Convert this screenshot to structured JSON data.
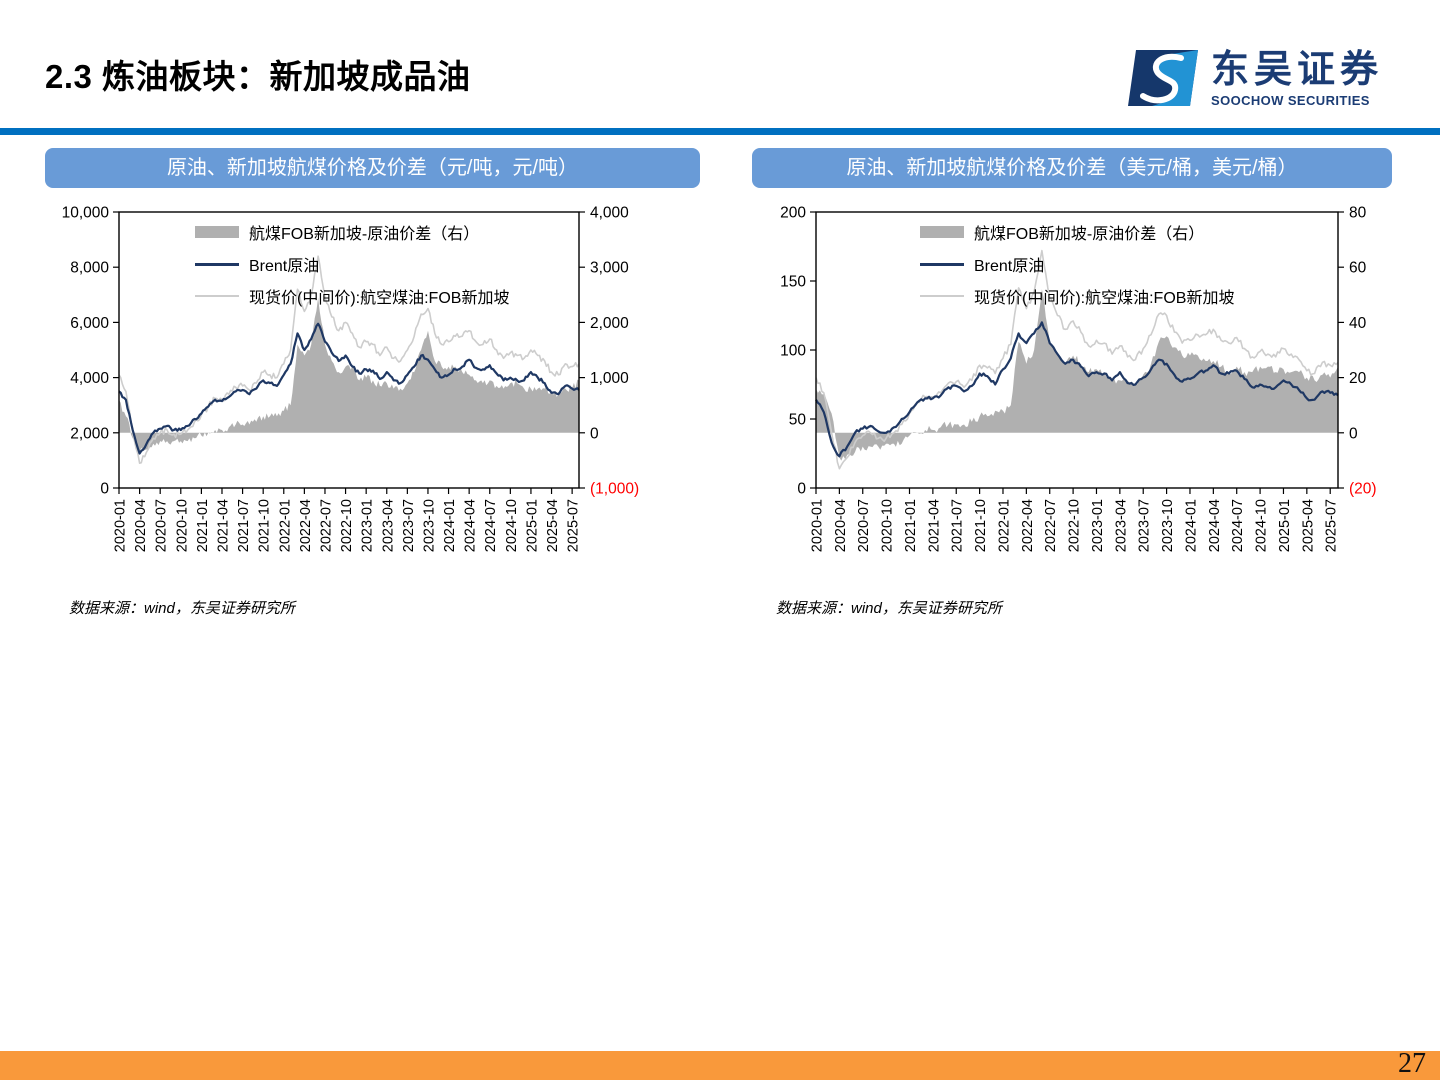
{
  "slide": {
    "title": "2.3 炼油板块：新加坡成品油",
    "page_number": "27"
  },
  "brand": {
    "name_cn": "东吴证券",
    "name_en": "SOOCHOW SECURITIES",
    "logo_icon": "soochow-s-mark",
    "colors": {
      "divider_blue": "#0070C0",
      "panel_header_blue": "#699BD7",
      "brent_navy": "#1F3864",
      "spot_gray": "#CDCDCD",
      "spread_gray": "#B0B0B0",
      "negative_tick_red": "#FF0000",
      "footer_orange": "#F9993B",
      "logo_navy": "#15376B",
      "logo_light_blue": "#2293D4"
    }
  },
  "panels": [
    {
      "header": "原油、新加坡航煤价格及价差（元/吨，元/吨）",
      "source": "数据来源：wind，东吴证券研究所"
    },
    {
      "header": "原油、新加坡航煤价格及价差（美元/桶，美元/桶）",
      "source": "数据来源：wind，东吴证券研究所"
    }
  ],
  "chart_data": [
    {
      "type": "area+line combo, dual axis",
      "title": "原油、新加坡航煤价格及价差（元/吨，元/吨）",
      "x_frequency": "monthly",
      "x_start": "2020-01",
      "x_end": "2025-08",
      "x_tick_labels": [
        "2020-01",
        "2020-04",
        "2020-07",
        "2020-10",
        "2021-01",
        "2021-04",
        "2021-07",
        "2021-10",
        "2022-01",
        "2022-04",
        "2022-07",
        "2022-10",
        "2023-01",
        "2023-04",
        "2023-07",
        "2023-10",
        "2024-01",
        "2024-04",
        "2024-07",
        "2024-10",
        "2025-01",
        "2025-04",
        "2025-07"
      ],
      "y_left": {
        "min": 0,
        "max": 10000,
        "ticks": [
          "0",
          "2,000",
          "4,000",
          "6,000",
          "8,000",
          "10,000"
        ]
      },
      "y_right": {
        "min": -1000,
        "max": 4000,
        "ticks": [
          "(1,000)",
          "0",
          "1,000",
          "2,000",
          "3,000",
          "4,000"
        ],
        "negative_color": "#FF0000"
      },
      "legend": [
        "航煤FOB新加坡-原油价差（右）",
        "Brent原油",
        "现货价(中间价):航空煤油:FOB新加坡"
      ],
      "legend_position": "inside-top-left",
      "grid": false,
      "series": [
        {
          "name": "航煤FOB新加坡-原油价差（右）",
          "type": "area",
          "axis": "right",
          "color": "#B0B0B0",
          "z": 0,
          "noise": 70,
          "values": [
            600,
            300,
            -100,
            -350,
            -300,
            -200,
            -150,
            -150,
            -150,
            -150,
            -150,
            -100,
            -50,
            0,
            50,
            50,
            100,
            150,
            150,
            150,
            200,
            300,
            300,
            300,
            400,
            500,
            1600,
            1400,
            1600,
            2450,
            1600,
            1300,
            1100,
            1200,
            1200,
            950,
            1000,
            950,
            850,
            900,
            800,
            800,
            900,
            1100,
            1500,
            1850,
            1300,
            1200,
            1200,
            1200,
            1100,
            1050,
            950,
            900,
            950,
            850,
            800,
            900,
            900,
            800,
            800,
            800,
            800,
            750,
            700,
            800,
            800,
            950
          ]
        },
        {
          "name": "Brent原油",
          "type": "line",
          "axis": "left",
          "color": "#1F3864",
          "width": 2.2,
          "z": 2,
          "noise": 60,
          "values": [
            3500,
            3200,
            2100,
            1250,
            1600,
            2000,
            2150,
            2250,
            2100,
            2100,
            2250,
            2500,
            2700,
            2950,
            3200,
            3150,
            3300,
            3500,
            3550,
            3400,
            3600,
            3900,
            3800,
            3700,
            4100,
            4500,
            5600,
            5000,
            5400,
            5950,
            5300,
            4900,
            4600,
            4800,
            4400,
            4150,
            4300,
            4250,
            3950,
            4200,
            3900,
            3800,
            4100,
            4400,
            4800,
            4650,
            4300,
            4000,
            4100,
            4300,
            4400,
            4650,
            4350,
            4300,
            4450,
            4150,
            3900,
            4000,
            3900,
            3900,
            4200,
            4000,
            3800,
            3450,
            3400,
            3700,
            3600,
            3550
          ]
        },
        {
          "name": "现货价(中间价):航空煤油:FOB新加坡",
          "type": "line",
          "axis": "left",
          "color": "#CDCDCD",
          "width": 1.6,
          "z": 1,
          "noise": 110,
          "values": [
            4100,
            3500,
            2000,
            900,
            1300,
            1800,
            2000,
            2100,
            1950,
            1950,
            2100,
            2400,
            2650,
            2950,
            3250,
            3200,
            3400,
            3650,
            3700,
            3550,
            3800,
            4200,
            4100,
            4000,
            4500,
            5000,
            7200,
            6400,
            7000,
            8400,
            6900,
            6200,
            5700,
            6000,
            5600,
            5100,
            5300,
            5200,
            4800,
            5100,
            4700,
            4600,
            5000,
            5500,
            6300,
            6500,
            5600,
            5200,
            5300,
            5500,
            5500,
            5700,
            5300,
            5200,
            5400,
            5000,
            4700,
            4900,
            4800,
            4700,
            5000,
            4800,
            4600,
            4200,
            4100,
            4500,
            4400,
            4500
          ]
        }
      ]
    },
    {
      "type": "area+line combo, dual axis",
      "title": "原油、新加坡航煤价格及价差（美元/桶，美元/桶）",
      "x_frequency": "monthly",
      "x_start": "2020-01",
      "x_end": "2025-08",
      "x_tick_labels": [
        "2020-01",
        "2020-04",
        "2020-07",
        "2020-10",
        "2021-01",
        "2021-04",
        "2021-07",
        "2021-10",
        "2022-01",
        "2022-04",
        "2022-07",
        "2022-10",
        "2023-01",
        "2023-04",
        "2023-07",
        "2023-10",
        "2024-01",
        "2024-04",
        "2024-07",
        "2024-10",
        "2025-01",
        "2025-04",
        "2025-07"
      ],
      "y_left": {
        "min": 0,
        "max": 200,
        "ticks": [
          "0",
          "50",
          "100",
          "150",
          "200"
        ]
      },
      "y_right": {
        "min": -20,
        "max": 80,
        "ticks": [
          "(20)",
          "0",
          "20",
          "40",
          "60",
          "80"
        ],
        "negative_color": "#FF0000"
      },
      "legend": [
        "航煤FOB新加坡-原油价差（右）",
        " Brent原油",
        "现货价(中间价):航空煤油:FOB新加坡"
      ],
      "legend_position": "inside-top-left",
      "grid": false,
      "series": [
        {
          "name": "航煤FOB新加坡-原油价差（右）",
          "type": "area",
          "axis": "right",
          "color": "#B0B0B0",
          "z": 0,
          "noise": 1.5,
          "values": [
            16,
            14,
            7,
            -9,
            -8,
            -7,
            -5,
            -5,
            -5,
            -4,
            -4,
            -4,
            -1,
            0,
            1,
            1,
            2,
            3,
            3,
            3,
            4,
            6,
            6,
            8,
            8,
            10,
            33,
            25,
            30,
            52,
            33,
            28,
            25,
            28,
            25,
            22,
            23,
            22,
            19,
            19,
            19,
            18,
            21,
            25,
            33,
            35,
            31,
            28,
            28,
            28,
            26,
            26,
            24,
            22,
            24,
            22,
            22,
            24,
            24,
            22,
            23,
            22,
            22,
            20,
            19,
            21,
            20,
            24
          ]
        },
        {
          "name": "Brent原油",
          "type": "line",
          "axis": "left",
          "color": "#1F3864",
          "width": 2.2,
          "z": 2,
          "noise": 1.3,
          "values": [
            64,
            55,
            33,
            23,
            30,
            40,
            43,
            45,
            41,
            40,
            44,
            50,
            55,
            62,
            65,
            65,
            67,
            73,
            74,
            70,
            74,
            83,
            81,
            75,
            86,
            94,
            112,
            105,
            112,
            120,
            105,
            97,
            90,
            93,
            88,
            81,
            84,
            83,
            78,
            84,
            76,
            75,
            80,
            86,
            93,
            90,
            82,
            77,
            79,
            83,
            85,
            89,
            83,
            83,
            85,
            79,
            73,
            75,
            73,
            73,
            78,
            75,
            71,
            65,
            64,
            70,
            69,
            67
          ]
        },
        {
          "name": "现货价(中间价):航空煤油:FOB新加坡",
          "type": "line",
          "axis": "left",
          "color": "#CDCDCD",
          "width": 1.6,
          "z": 1,
          "noise": 2.3,
          "values": [
            80,
            69,
            40,
            14,
            22,
            33,
            38,
            40,
            36,
            36,
            40,
            46,
            54,
            62,
            66,
            66,
            69,
            76,
            77,
            73,
            78,
            89,
            87,
            83,
            94,
            104,
            145,
            130,
            142,
            172,
            138,
            125,
            115,
            121,
            113,
            103,
            107,
            105,
            97,
            103,
            95,
            93,
            101,
            111,
            126,
            125,
            113,
            105,
            107,
            111,
            111,
            115,
            107,
            105,
            109,
            101,
            95,
            99,
            97,
            95,
            101,
            97,
            93,
            85,
            83,
            91,
            89,
            91
          ]
        }
      ]
    }
  ]
}
